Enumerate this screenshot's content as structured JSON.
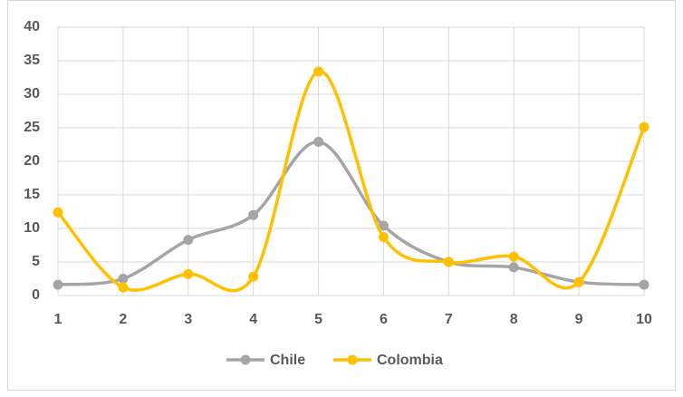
{
  "chart_data": {
    "type": "line",
    "smooth": true,
    "grid": true,
    "legend": "bottom",
    "categories": [
      1,
      2,
      3,
      4,
      5,
      6,
      7,
      8,
      9,
      10
    ],
    "series": [
      {
        "name": "Chile",
        "color": "#a5a5a5",
        "values": [
          1.6,
          2.5,
          8.3,
          12,
          22.9,
          10.4,
          5,
          4.2,
          2,
          1.6
        ]
      },
      {
        "name": "Colombia",
        "color": "#ffc000",
        "values": [
          12.4,
          1.2,
          3.2,
          2.8,
          33.4,
          8.7,
          5,
          5.8,
          2,
          25.1
        ]
      }
    ],
    "ylim": [
      0,
      40
    ],
    "yticks": [
      0,
      5,
      10,
      15,
      20,
      25,
      30,
      35,
      40
    ]
  }
}
